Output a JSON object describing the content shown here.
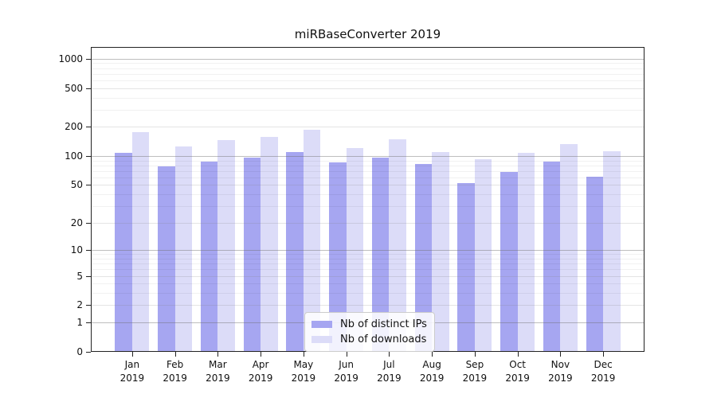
{
  "chart_data": {
    "type": "bar",
    "title": "miRBaseConverter 2019",
    "categories": [
      "Jan 2019",
      "Feb 2019",
      "Mar 2019",
      "Apr 2019",
      "May 2019",
      "Jun 2019",
      "Jul 2019",
      "Aug 2019",
      "Sep 2019",
      "Oct 2019",
      "Nov 2019",
      "Dec 2019"
    ],
    "series": [
      {
        "name": "Nb of distinct IPs",
        "color": "#a6a6f1",
        "values": [
          108,
          78,
          87,
          97,
          109,
          86,
          97,
          82,
          52,
          68,
          88,
          61
        ]
      },
      {
        "name": "Nb of downloads",
        "color": "#dcdcf8",
        "values": [
          175,
          126,
          147,
          157,
          187,
          120,
          150,
          110,
          93,
          108,
          134,
          113
        ]
      }
    ],
    "xlabel": "",
    "ylabel": "",
    "yscale": "symlog",
    "ylim": [
      0,
      1320
    ],
    "y_ticks": [
      0,
      1,
      2,
      5,
      10,
      20,
      50,
      100,
      200,
      500,
      1000
    ],
    "minor_gridlines": [
      3,
      4,
      6,
      7,
      8,
      9,
      30,
      40,
      60,
      70,
      80,
      90,
      300,
      400,
      600,
      700,
      800,
      900
    ],
    "grid": true,
    "legend_position": "lower center"
  },
  "legend": {
    "items": [
      {
        "label": "Nb of distinct IPs",
        "color": "#a6a6f1"
      },
      {
        "label": "Nb of downloads",
        "color": "#dcdcf8"
      }
    ]
  },
  "colors": {
    "background": "#ffffff",
    "axis": "#222222",
    "text": "#111111",
    "grid_major": "#9a9a9a",
    "grid_minor": "#ebebeb",
    "bar_ips": "#a6a6f1",
    "bar_downloads": "#dcdcf8"
  }
}
